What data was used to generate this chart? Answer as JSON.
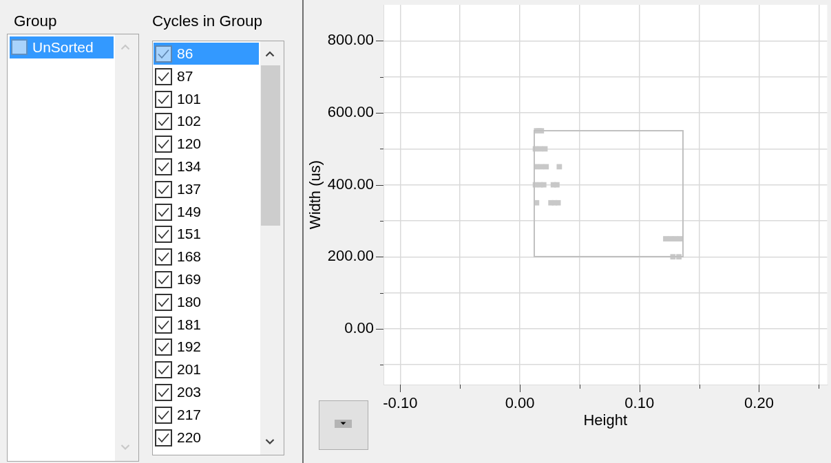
{
  "chart_data": [
    {
      "type": "other",
      "title": "Group",
      "annotations": [
        "UnSorted"
      ]
    },
    {
      "type": "other",
      "title": "Cycles in Group",
      "annotations": [
        "86",
        "87",
        "101",
        "102",
        "120",
        "134",
        "137",
        "149",
        "151",
        "168",
        "169",
        "180",
        "181",
        "192",
        "201",
        "203",
        "217",
        "220"
      ]
    },
    {
      "type": "scatter",
      "xlabel": "Height",
      "ylabel": "Width (us)",
      "xlim": [
        -0.114,
        0.257
      ],
      "ylim": [
        -155,
        900
      ],
      "xticks": [
        {
          "value": -0.1,
          "label": "-0.10"
        },
        {
          "value": -0.05,
          "label": null
        },
        {
          "value": 0,
          "label": "0.00"
        },
        {
          "value": 0.05,
          "label": null
        },
        {
          "value": 0.1,
          "label": "0.10"
        },
        {
          "value": 0.15,
          "label": null
        },
        {
          "value": 0.2,
          "label": "0.20"
        },
        {
          "value": 0.25,
          "label": null
        }
      ],
      "yticks": [
        {
          "value": -100,
          "label": null
        },
        {
          "value": 0,
          "label": "0.00"
        },
        {
          "value": 100,
          "label": null
        },
        {
          "value": 200,
          "label": "200.00"
        },
        {
          "value": 300,
          "label": null
        },
        {
          "value": 400,
          "label": "400.00"
        },
        {
          "value": 500,
          "label": null
        },
        {
          "value": 600,
          "label": "600.00"
        },
        {
          "value": 700,
          "label": null
        },
        {
          "value": 800,
          "label": "800.00"
        }
      ],
      "grid": true,
      "marker": "square",
      "series": [
        {
          "color": "#c8c8c8",
          "x": [
            0.014,
            0.016,
            0.018,
            0.013,
            0.017,
            0.021,
            0.014,
            0.018,
            0.022,
            0.033,
            0.013,
            0.017,
            0.02,
            0.028,
            0.031,
            0.014,
            0.026,
            0.029,
            0.032,
            0.122,
            0.126,
            0.13,
            0.134,
            0.128,
            0.133
          ],
          "values": [
            550,
            550,
            550,
            500,
            500,
            500,
            450,
            450,
            450,
            450,
            400,
            400,
            400,
            400,
            400,
            350,
            350,
            350,
            350,
            250,
            250,
            250,
            250,
            200,
            200
          ]
        }
      ]
    }
  ]
}
